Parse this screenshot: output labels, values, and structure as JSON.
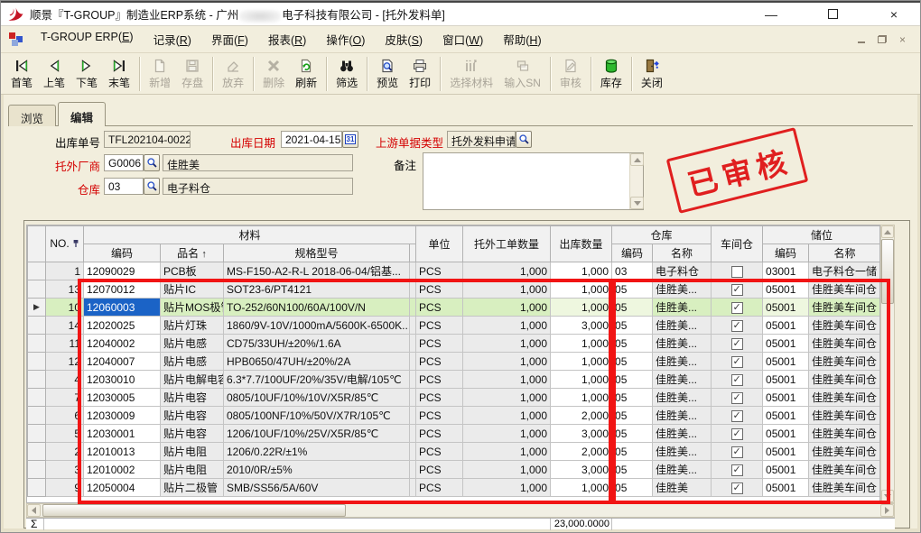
{
  "titlebar": {
    "title_part1": "顺景『T-GROUP』制造业ERP系统 - 广州",
    "title_part2": "电子科技有限公司 - [托外发料单]",
    "minimize_glyph": "—",
    "close_glyph": "×"
  },
  "menubar": {
    "items": [
      {
        "id": "tgroup-erp",
        "label": "T-GROUP ERP(E)"
      },
      {
        "id": "records",
        "label": "记录(R)"
      },
      {
        "id": "interface",
        "label": "界面(F)"
      },
      {
        "id": "reports",
        "label": "报表(R)"
      },
      {
        "id": "operations",
        "label": "操作(O)"
      },
      {
        "id": "skins",
        "label": "皮肤(S)"
      },
      {
        "id": "window",
        "label": "窗口(W)"
      },
      {
        "id": "help",
        "label": "帮助(H)"
      }
    ],
    "mdi_close_glyph": "×"
  },
  "toolbar": {
    "buttons": [
      {
        "id": "first",
        "label": "首笔",
        "icon": "nav-first",
        "enabled": true
      },
      {
        "id": "prev",
        "label": "上笔",
        "icon": "nav-prev",
        "enabled": true
      },
      {
        "id": "next",
        "label": "下笔",
        "icon": "nav-next",
        "enabled": true
      },
      {
        "id": "last",
        "label": "末笔",
        "icon": "nav-last",
        "enabled": true,
        "sep": true
      },
      {
        "id": "new",
        "label": "新增",
        "icon": "doc-new",
        "enabled": false
      },
      {
        "id": "save",
        "label": "存盘",
        "icon": "save",
        "enabled": false,
        "sep": true
      },
      {
        "id": "discard",
        "label": "放弃",
        "icon": "eraser",
        "enabled": false,
        "sep": true
      },
      {
        "id": "delete",
        "label": "删除",
        "icon": "delete-x",
        "enabled": false
      },
      {
        "id": "refresh",
        "label": "刷新",
        "icon": "refresh",
        "enabled": true,
        "sep": true
      },
      {
        "id": "filter",
        "label": "筛选",
        "icon": "binoculars",
        "enabled": true,
        "sep": true
      },
      {
        "id": "preview",
        "label": "预览",
        "icon": "preview",
        "enabled": true
      },
      {
        "id": "print",
        "label": "打印",
        "icon": "printer",
        "enabled": true,
        "sep": true
      },
      {
        "id": "select-material",
        "label": "选择材料",
        "icon": "select-material",
        "enabled": false
      },
      {
        "id": "input-sn",
        "label": "输入SN",
        "icon": "input-sn",
        "enabled": false,
        "sep": true
      },
      {
        "id": "audit",
        "label": "审核",
        "icon": "audit",
        "enabled": false,
        "sep": true
      },
      {
        "id": "stock",
        "label": "库存",
        "icon": "stock",
        "enabled": true,
        "sep": true
      },
      {
        "id": "close-form",
        "label": "关闭",
        "icon": "exit",
        "enabled": true
      }
    ]
  },
  "tabs": [
    {
      "id": "browse",
      "label": "浏览",
      "active": false
    },
    {
      "id": "edit",
      "label": "编辑",
      "active": true
    }
  ],
  "form": {
    "doc_no": {
      "label": "出库单号",
      "value": "TFL202104-0022"
    },
    "out_date": {
      "label": "出库日期",
      "value": "2021-04-15",
      "calendar_glyph": "31"
    },
    "upstream_type": {
      "label": "上游单据类型",
      "value": "托外发料申请"
    },
    "vendor": {
      "label": "托外厂商",
      "code": "G0006",
      "name": "佳胜美"
    },
    "warehouse": {
      "label": "仓库",
      "code": "03",
      "name": "电子料仓"
    },
    "remark": {
      "label": "备注",
      "value": ""
    }
  },
  "stamp_text": "已审核",
  "grid": {
    "header": {
      "no": "NO.",
      "material_group": "材料",
      "code": "编码",
      "name": "品名",
      "sort_arrow": "↑",
      "spec": "规格型号",
      "unit": "单位",
      "order_qty": "托外工单数量",
      "out_qty": "出库数量",
      "warehouse_group": "仓库",
      "wh_code": "编码",
      "wh_name": "名称",
      "workshop": "车间仓",
      "bin_group": "储位",
      "bin_code": "编码",
      "bin_name": "名称"
    },
    "marker_glyph": "▶",
    "rows": [
      {
        "no": "1",
        "code": "12090029",
        "name": "PCB板",
        "spec": "MS-F150-A2-R-L 2018-06-04/铝基...",
        "unit": "PCS",
        "order_qty": "1,000",
        "out_qty": "1,000",
        "wh_code": "03",
        "wh_name": "电子料仓",
        "workshop": false,
        "bin_code": "03001",
        "bin_name": "电子料仓一储",
        "selected": false
      },
      {
        "no": "13",
        "code": "12070012",
        "name": "贴片IC",
        "spec": "SOT23-6/PT4121",
        "unit": "PCS",
        "order_qty": "1,000",
        "out_qty": "1,000",
        "wh_code": "05",
        "wh_name": "佳胜美...",
        "workshop": true,
        "bin_code": "05001",
        "bin_name": "佳胜美车间仓",
        "selected": false
      },
      {
        "no": "10",
        "code": "12060003",
        "name": "贴片MOS极管",
        "spec": "TO-252/60N100/60A/100V/N",
        "unit": "PCS",
        "order_qty": "1,000",
        "out_qty": "1,000",
        "wh_code": "05",
        "wh_name": "佳胜美...",
        "workshop": true,
        "bin_code": "05001",
        "bin_name": "佳胜美车间仓",
        "selected": true
      },
      {
        "no": "14",
        "code": "12020025",
        "name": "贴片灯珠",
        "spec": "1860/9V-10V/1000mA/5600K-6500K...",
        "unit": "PCS",
        "order_qty": "1,000",
        "out_qty": "3,000",
        "wh_code": "05",
        "wh_name": "佳胜美...",
        "workshop": true,
        "bin_code": "05001",
        "bin_name": "佳胜美车间仓",
        "selected": false
      },
      {
        "no": "11",
        "code": "12040002",
        "name": "贴片电感",
        "spec": "CD75/33UH/±20%/1.6A",
        "unit": "PCS",
        "order_qty": "1,000",
        "out_qty": "1,000",
        "wh_code": "05",
        "wh_name": "佳胜美...",
        "workshop": true,
        "bin_code": "05001",
        "bin_name": "佳胜美车间仓",
        "selected": false
      },
      {
        "no": "12",
        "code": "12040007",
        "name": "贴片电感",
        "spec": "HPB0650/47UH/±20%/2A",
        "unit": "PCS",
        "order_qty": "1,000",
        "out_qty": "1,000",
        "wh_code": "05",
        "wh_name": "佳胜美...",
        "workshop": true,
        "bin_code": "05001",
        "bin_name": "佳胜美车间仓",
        "selected": false
      },
      {
        "no": "4",
        "code": "12030010",
        "name": "贴片电解电容",
        "spec": "6.3*7.7/100UF/20%/35V/电解/105℃",
        "unit": "PCS",
        "order_qty": "1,000",
        "out_qty": "1,000",
        "wh_code": "05",
        "wh_name": "佳胜美...",
        "workshop": true,
        "bin_code": "05001",
        "bin_name": "佳胜美车间仓",
        "selected": false
      },
      {
        "no": "7",
        "code": "12030005",
        "name": "贴片电容",
        "spec": "0805/10UF/10%/10V/X5R/85℃",
        "unit": "PCS",
        "order_qty": "1,000",
        "out_qty": "1,000",
        "wh_code": "05",
        "wh_name": "佳胜美...",
        "workshop": true,
        "bin_code": "05001",
        "bin_name": "佳胜美车间仓",
        "selected": false
      },
      {
        "no": "6",
        "code": "12030009",
        "name": "贴片电容",
        "spec": "0805/100NF/10%/50V/X7R/105℃",
        "unit": "PCS",
        "order_qty": "1,000",
        "out_qty": "2,000",
        "wh_code": "05",
        "wh_name": "佳胜美...",
        "workshop": true,
        "bin_code": "05001",
        "bin_name": "佳胜美车间仓",
        "selected": false
      },
      {
        "no": "5",
        "code": "12030001",
        "name": "贴片电容",
        "spec": "1206/10UF/10%/25V/X5R/85℃",
        "unit": "PCS",
        "order_qty": "1,000",
        "out_qty": "3,000",
        "wh_code": "05",
        "wh_name": "佳胜美...",
        "workshop": true,
        "bin_code": "05001",
        "bin_name": "佳胜美车间仓",
        "selected": false
      },
      {
        "no": "2",
        "code": "12010013",
        "name": "贴片电阻",
        "spec": "1206/0.22R/±1%",
        "unit": "PCS",
        "order_qty": "1,000",
        "out_qty": "2,000",
        "wh_code": "05",
        "wh_name": "佳胜美...",
        "workshop": true,
        "bin_code": "05001",
        "bin_name": "佳胜美车间仓",
        "selected": false
      },
      {
        "no": "3",
        "code": "12010002",
        "name": "贴片电阻",
        "spec": "2010/0R/±5%",
        "unit": "PCS",
        "order_qty": "1,000",
        "out_qty": "3,000",
        "wh_code": "05",
        "wh_name": "佳胜美...",
        "workshop": true,
        "bin_code": "05001",
        "bin_name": "佳胜美车间仓",
        "selected": false
      },
      {
        "no": "9",
        "code": "12050004",
        "name": "贴片二极管",
        "spec": "SMB/SS56/5A/60V",
        "unit": "PCS",
        "order_qty": "1,000",
        "out_qty": "1,000",
        "wh_code": "05",
        "wh_name": "佳胜美",
        "workshop": true,
        "bin_code": "05001",
        "bin_name": "佳胜美车间仓",
        "selected": false
      }
    ],
    "sum_symbol": "Σ",
    "sum_out_qty": "23,000.0000"
  },
  "colors": {
    "annotation_red": "#f11414",
    "label_red": "#d40000",
    "selected_cell_blue": "#1b63c6",
    "selected_row_green": "#d8efc0",
    "stamp_red": "#e01f1f",
    "stock_icon_green": "#2eb82e"
  }
}
